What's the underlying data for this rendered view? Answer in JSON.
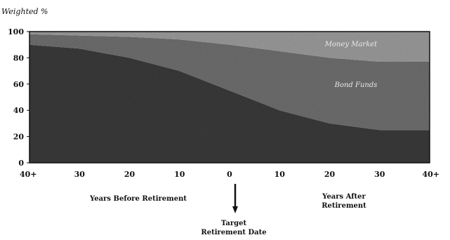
{
  "chart_data": {
    "type": "area",
    "ylabel": "Weighted %",
    "ylim": [
      0,
      100
    ],
    "yticks": [
      0,
      20,
      40,
      60,
      80,
      100
    ],
    "xlim": [
      -40,
      40
    ],
    "xticks": [
      -40,
      -30,
      -20,
      -10,
      0,
      10,
      20,
      30,
      40
    ],
    "xtick_labels": [
      "40+",
      "30",
      "20",
      "10",
      "0",
      "10",
      "20",
      "30",
      "40+"
    ],
    "grid": false,
    "x": [
      -40,
      -30,
      -20,
      -10,
      0,
      10,
      20,
      30,
      40
    ],
    "series": [
      {
        "name": "",
        "values": [
          90,
          87,
          80,
          70,
          55,
          40,
          30,
          25,
          25
        ]
      },
      {
        "name": "Bond Funds",
        "values": [
          8,
          10,
          16,
          24,
          35,
          45,
          50,
          52,
          52
        ]
      },
      {
        "name": "Money Market",
        "values": [
          2,
          3,
          4,
          6,
          10,
          15,
          20,
          23,
          23
        ]
      }
    ],
    "colors": [
      "#3a3a3a",
      "#6e6e6e",
      "#9a9a9a"
    ],
    "region_labels": {
      "money_market": "Money Market",
      "bond_funds": "Bond Funds"
    },
    "annotations": {
      "years_before": "Years Before Retirement",
      "years_after_line1": "Years After",
      "years_after_line2": "Retirement",
      "target_line1": "Target",
      "target_line2": "Retirement Date"
    }
  }
}
